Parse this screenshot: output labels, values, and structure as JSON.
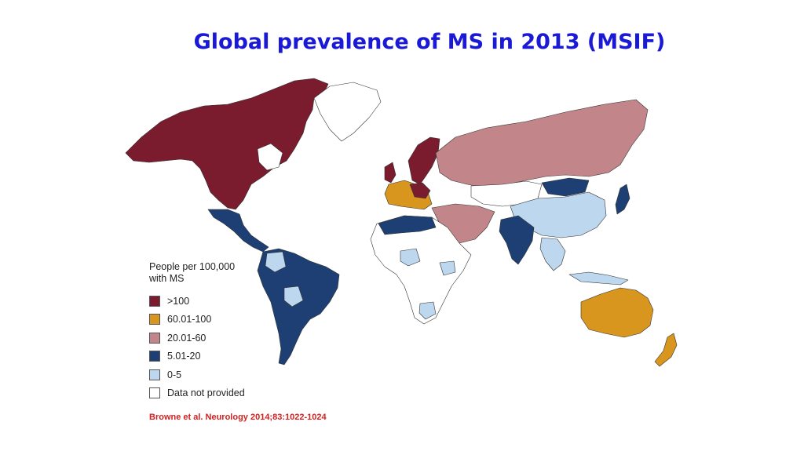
{
  "title": "Global prevalence of MS in 2013 (MSIF)",
  "legend": {
    "heading": "People per 100,000 with MS",
    "items": [
      {
        "label": ">100",
        "color": "#7a1b2e"
      },
      {
        "label": "60.01-100",
        "color": "#d9961f"
      },
      {
        "label": "20.01-60",
        "color": "#c28589"
      },
      {
        "label": "5.01-20",
        "color": "#1d3f73"
      },
      {
        "label": "0-5",
        "color": "#bdd7ee"
      },
      {
        "label": "Data not provided",
        "color": "#ffffff"
      }
    ]
  },
  "citation": "Browne et al. Neurology 2014;83:1022-1024",
  "map_colors": {
    "north_america": "#7a1b2e",
    "europe_north": "#7a1b2e",
    "europe_west": "#d9961f",
    "russia": "#c28589",
    "middle_east": "#c28589",
    "central_america": "#1d3f73",
    "south_america": "#1d3f73",
    "south_america_low": "#bdd7ee",
    "north_africa": "#1d3f73",
    "india": "#1d3f73",
    "mongolia": "#1d3f73",
    "japan": "#1d3f73",
    "china": "#bdd7ee",
    "southeast_asia": "#bdd7ee",
    "africa": "#ffffff",
    "africa_low": "#bdd7ee",
    "australia": "#d9961f",
    "new_zealand": "#d9961f",
    "greenland": "#ffffff",
    "central_asia": "#ffffff"
  }
}
